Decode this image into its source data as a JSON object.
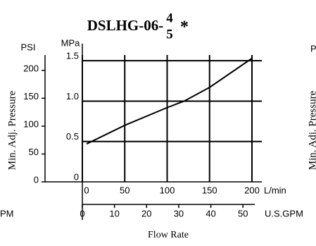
{
  "chart_data": {
    "type": "line",
    "title": "DSLHG-06-",
    "title_upper": "4",
    "title_lower": "5",
    "title_suffix": "*",
    "y_label": "Min. Adj. Pressure",
    "x_label": "Flow Rate",
    "y_unit": "MPa",
    "y2_unit": "PSI",
    "x_unit": "L/min",
    "x2_unit": "U.S.GPM",
    "x": [
      5,
      50,
      100,
      120,
      150,
      200
    ],
    "values": [
      0.47,
      0.7,
      0.92,
      1.0,
      1.17,
      1.53
    ],
    "color": "#000000",
    "xlim": [
      0,
      200
    ],
    "xticks": [
      0,
      50,
      100,
      150,
      200
    ],
    "x2lim": [
      0,
      52.8
    ],
    "x2ticks": [
      0,
      10,
      20,
      30,
      40,
      50
    ],
    "ylim": [
      0,
      1.65
    ],
    "yticks": [
      0,
      0.5,
      {
        "value": 1,
        "label": "1.0"
      },
      1.5
    ],
    "y2lim": [
      0,
      239
    ],
    "y2ticks": [
      0,
      50,
      100,
      150,
      200
    ],
    "grid": true
  },
  "cropped_neighbors": {
    "left": "PM",
    "right_top": "P",
    "right_label": "Min. Adj. Pressure"
  }
}
